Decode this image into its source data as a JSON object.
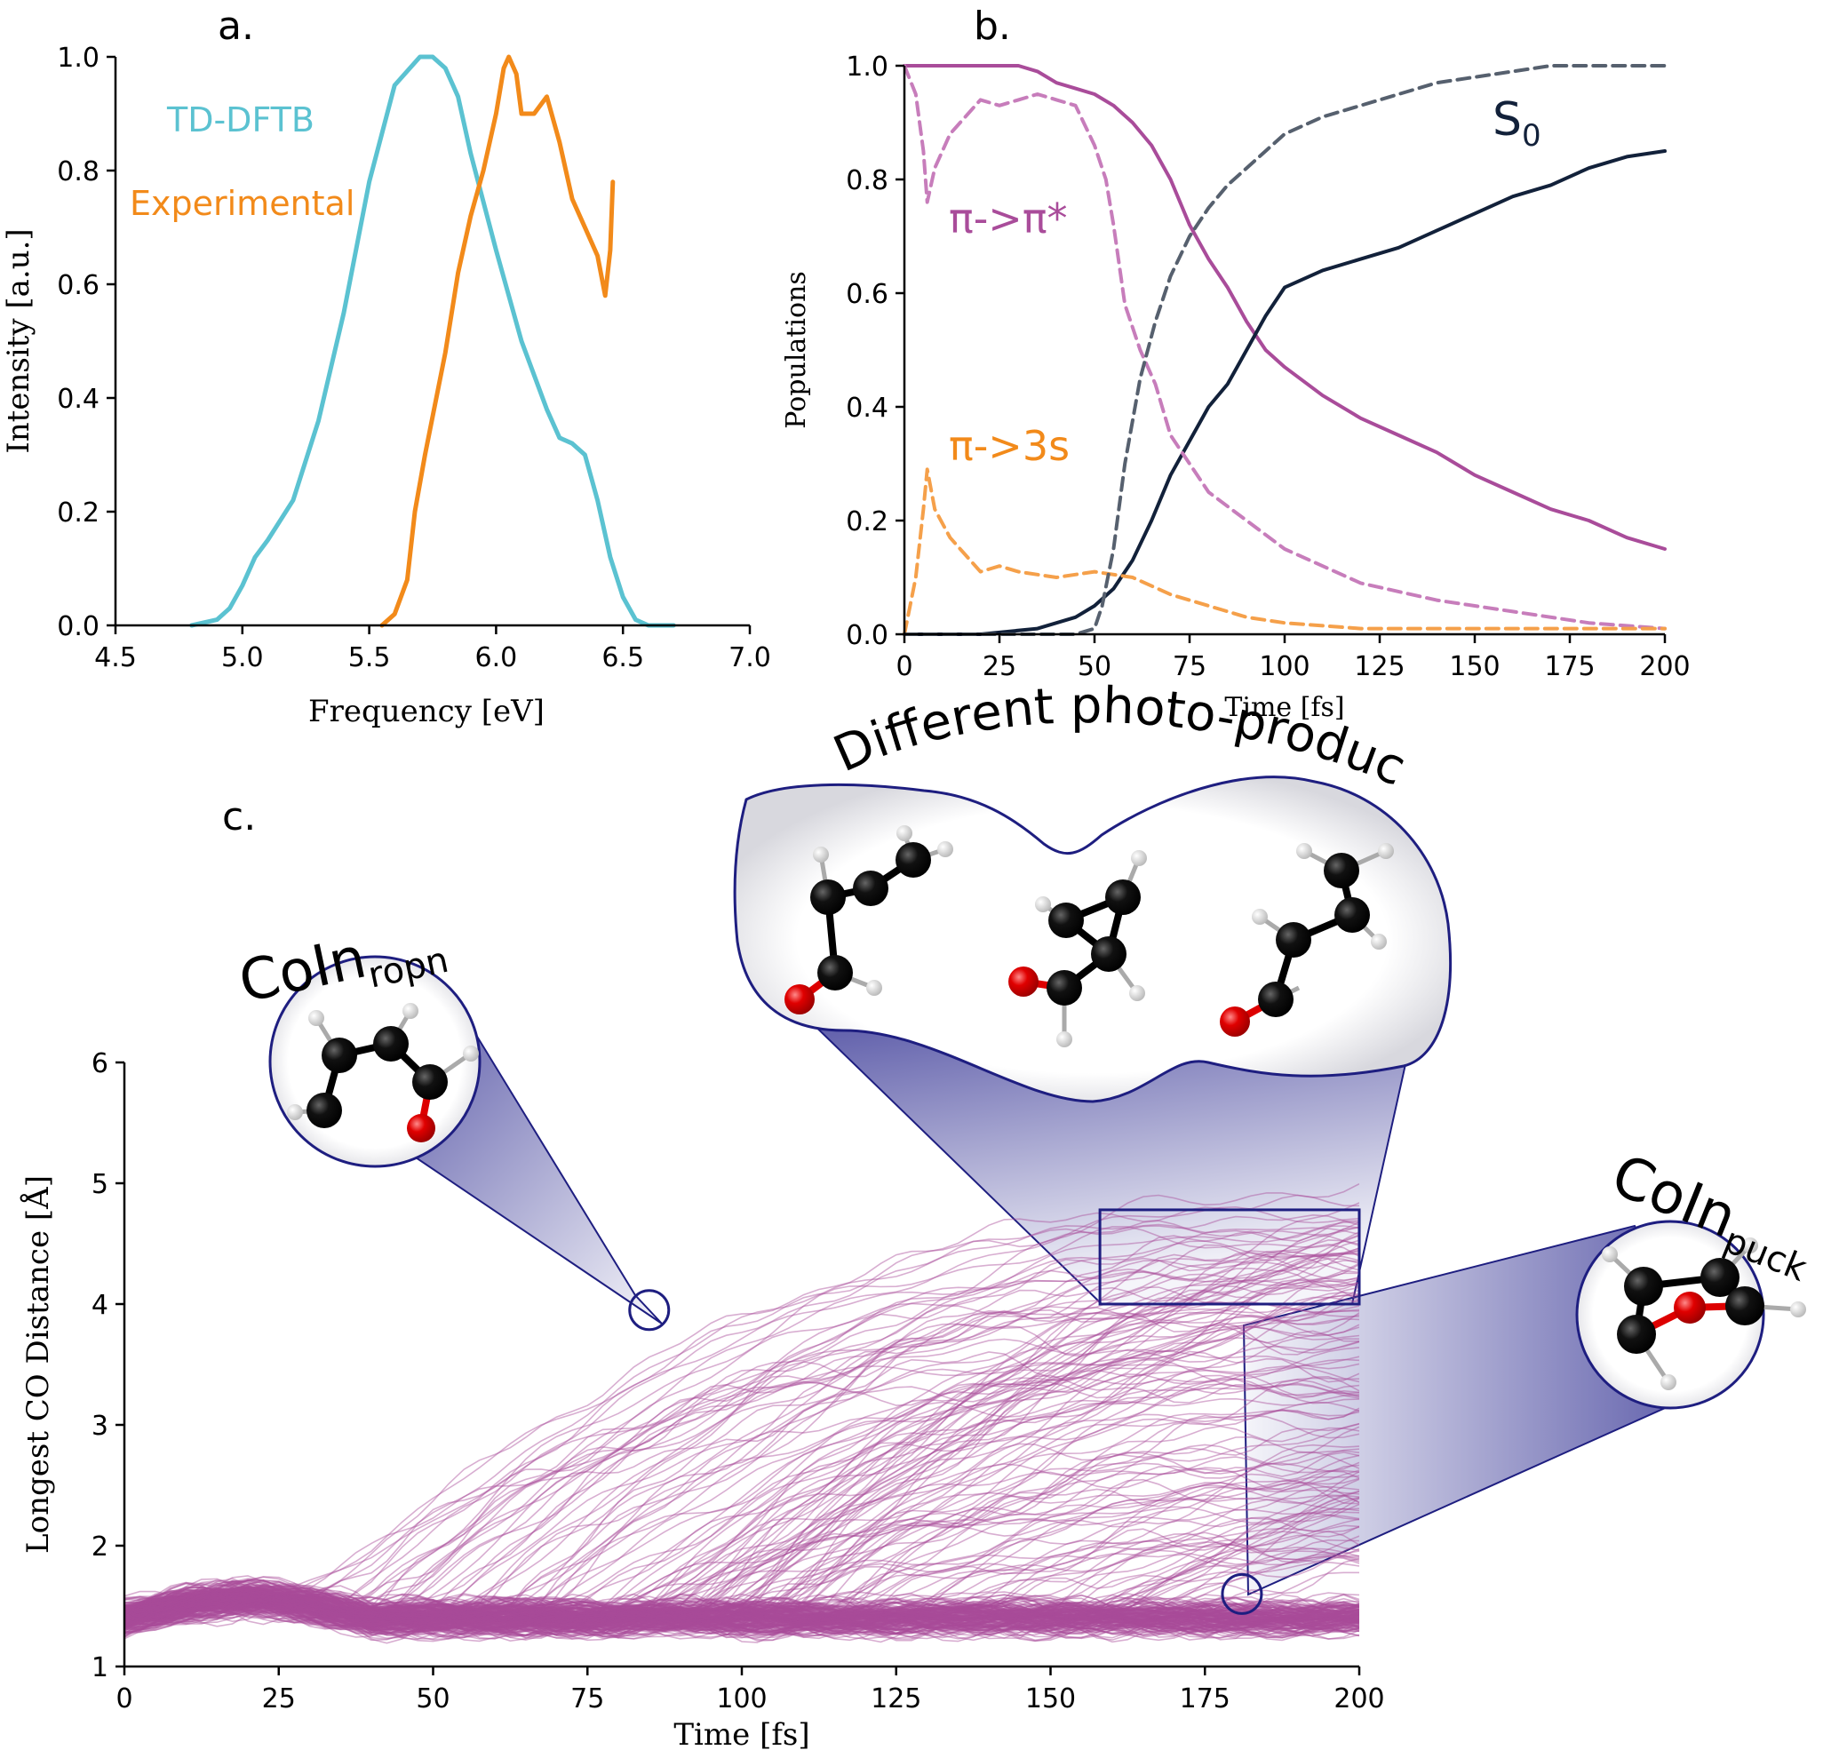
{
  "chart_data": [
    {
      "panel_label": "a.",
      "type": "line",
      "xlabel": "Frequency [eV]",
      "ylabel": "Intensity [a.u.]",
      "xlim": [
        4.5,
        7.0
      ],
      "ylim": [
        0.0,
        1.0
      ],
      "xticks": [
        "4.5",
        "5.0",
        "5.5",
        "6.0",
        "6.5",
        "7.0"
      ],
      "yticks": [
        "0.0",
        "0.2",
        "0.4",
        "0.6",
        "0.8",
        "1.0"
      ],
      "grid": false,
      "series": [
        {
          "name": "TD-DFTB",
          "color": "#5bc2d1",
          "dash": "solid",
          "x": [
            4.8,
            4.9,
            4.95,
            5.0,
            5.05,
            5.1,
            5.2,
            5.3,
            5.4,
            5.5,
            5.6,
            5.7,
            5.75,
            5.8,
            5.85,
            5.9,
            6.0,
            6.1,
            6.2,
            6.25,
            6.3,
            6.35,
            6.4,
            6.45,
            6.5,
            6.55,
            6.6,
            6.7
          ],
          "y": [
            0.0,
            0.01,
            0.03,
            0.07,
            0.12,
            0.15,
            0.22,
            0.36,
            0.55,
            0.78,
            0.95,
            1.0,
            1.0,
            0.98,
            0.93,
            0.83,
            0.66,
            0.5,
            0.38,
            0.33,
            0.32,
            0.3,
            0.22,
            0.12,
            0.05,
            0.01,
            0.0,
            0.0
          ]
        },
        {
          "name": "Experimental",
          "color": "#f28a1a",
          "dash": "solid",
          "x": [
            5.55,
            5.6,
            5.65,
            5.68,
            5.72,
            5.8,
            5.85,
            5.9,
            5.95,
            6.0,
            6.03,
            6.05,
            6.08,
            6.1,
            6.15,
            6.2,
            6.25,
            6.3,
            6.35,
            6.4,
            6.43,
            6.45,
            6.46
          ],
          "y": [
            0.0,
            0.02,
            0.08,
            0.2,
            0.3,
            0.48,
            0.62,
            0.72,
            0.8,
            0.9,
            0.98,
            1.0,
            0.97,
            0.9,
            0.9,
            0.93,
            0.85,
            0.75,
            0.7,
            0.65,
            0.58,
            0.66,
            0.78
          ]
        }
      ]
    },
    {
      "panel_label": "b.",
      "type": "line",
      "xlabel": "Time [fs]",
      "ylabel": "Populations",
      "xlim": [
        0,
        200
      ],
      "ylim": [
        0.0,
        1.0
      ],
      "xticks": [
        "0",
        "25",
        "50",
        "75",
        "100",
        "125",
        "150",
        "175",
        "200"
      ],
      "yticks": [
        "0.0",
        "0.2",
        "0.4",
        "0.6",
        "0.8",
        "1.0"
      ],
      "grid": false,
      "series": [
        {
          "name": "π->π*",
          "color": "#a94c9a",
          "dash": "solid",
          "x": [
            0,
            10,
            20,
            30,
            35,
            40,
            45,
            50,
            55,
            60,
            65,
            70,
            75,
            80,
            85,
            90,
            95,
            100,
            110,
            120,
            130,
            140,
            150,
            160,
            170,
            180,
            190,
            200
          ],
          "y": [
            1.0,
            1.0,
            1.0,
            1.0,
            0.99,
            0.97,
            0.96,
            0.95,
            0.93,
            0.9,
            0.86,
            0.8,
            0.72,
            0.66,
            0.61,
            0.55,
            0.5,
            0.47,
            0.42,
            0.38,
            0.35,
            0.32,
            0.28,
            0.25,
            0.22,
            0.2,
            0.17,
            0.15
          ]
        },
        {
          "name": "S0",
          "color": "#12213a",
          "dash": "solid",
          "x": [
            0,
            20,
            35,
            40,
            45,
            50,
            55,
            60,
            65,
            70,
            75,
            80,
            85,
            90,
            95,
            100,
            110,
            120,
            130,
            140,
            150,
            160,
            170,
            180,
            190,
            200
          ],
          "y": [
            0.0,
            0.0,
            0.01,
            0.02,
            0.03,
            0.05,
            0.08,
            0.13,
            0.2,
            0.28,
            0.34,
            0.4,
            0.44,
            0.5,
            0.56,
            0.61,
            0.64,
            0.66,
            0.68,
            0.71,
            0.74,
            0.77,
            0.79,
            0.82,
            0.84,
            0.85
          ]
        },
        {
          "name": "π->π* (dashed)",
          "color": "#c77dbb",
          "dash": "dashed",
          "x": [
            0,
            3,
            5,
            6,
            8,
            12,
            20,
            25,
            30,
            35,
            40,
            45,
            50,
            53,
            55,
            58,
            62,
            66,
            70,
            75,
            80,
            90,
            100,
            110,
            120,
            140,
            160,
            180,
            200
          ],
          "y": [
            1.0,
            0.95,
            0.85,
            0.76,
            0.82,
            0.88,
            0.94,
            0.93,
            0.94,
            0.95,
            0.94,
            0.93,
            0.86,
            0.8,
            0.72,
            0.58,
            0.5,
            0.44,
            0.35,
            0.3,
            0.25,
            0.2,
            0.15,
            0.12,
            0.09,
            0.06,
            0.04,
            0.02,
            0.01
          ]
        },
        {
          "name": "π->3s",
          "color": "#f5a04a",
          "dash": "dashed",
          "x": [
            0,
            3,
            5,
            6,
            8,
            12,
            20,
            25,
            30,
            40,
            50,
            60,
            70,
            80,
            90,
            100,
            120,
            150,
            200
          ],
          "y": [
            0.0,
            0.1,
            0.22,
            0.29,
            0.22,
            0.17,
            0.11,
            0.12,
            0.11,
            0.1,
            0.11,
            0.1,
            0.07,
            0.05,
            0.03,
            0.02,
            0.01,
            0.01,
            0.01
          ]
        },
        {
          "name": "S0 (dashed)",
          "color": "#56606e",
          "dash": "dashed",
          "x": [
            0,
            40,
            45,
            50,
            52,
            55,
            58,
            62,
            66,
            70,
            75,
            80,
            85,
            90,
            95,
            100,
            110,
            120,
            130,
            140,
            150,
            160,
            170,
            180,
            190,
            200
          ],
          "y": [
            0.0,
            0.0,
            0.0,
            0.01,
            0.05,
            0.15,
            0.3,
            0.45,
            0.55,
            0.63,
            0.7,
            0.75,
            0.79,
            0.82,
            0.85,
            0.88,
            0.91,
            0.93,
            0.95,
            0.97,
            0.98,
            0.99,
            1.0,
            1.0,
            1.0,
            1.0
          ]
        }
      ],
      "annotations": [
        {
          "text": "π->π*",
          "color": "#a94c9a"
        },
        {
          "text": "π->3s",
          "color": "#f28a1a"
        },
        {
          "text": "S",
          "subscript": "0",
          "color": "#12213a"
        }
      ]
    },
    {
      "panel_label": "c.",
      "type": "line",
      "xlabel": "Time [fs]",
      "ylabel": "Longest CO Distance [Å]",
      "xlim": [
        0,
        200
      ],
      "ylim": [
        1,
        6
      ],
      "xticks": [
        "0",
        "25",
        "50",
        "75",
        "100",
        "125",
        "150",
        "175",
        "200"
      ],
      "yticks": [
        "1",
        "2",
        "3",
        "4",
        "5",
        "6"
      ],
      "grid": false,
      "trajectory_color": "#a94c9a",
      "trajectory_count": 300,
      "trajectory_start": 1.4,
      "highlight_box": {
        "x": [
          158,
          200
        ],
        "y": [
          4.0,
          4.78
        ]
      },
      "annotations": [
        {
          "text": "CoIn",
          "subscript": "ropn",
          "time": 85,
          "value": 3.95
        },
        {
          "text": "Different photo-products",
          "time": 179,
          "value": 4.39
        },
        {
          "text": "CoIn",
          "subscript": "puck",
          "time": 181,
          "value": 1.6
        }
      ]
    }
  ]
}
